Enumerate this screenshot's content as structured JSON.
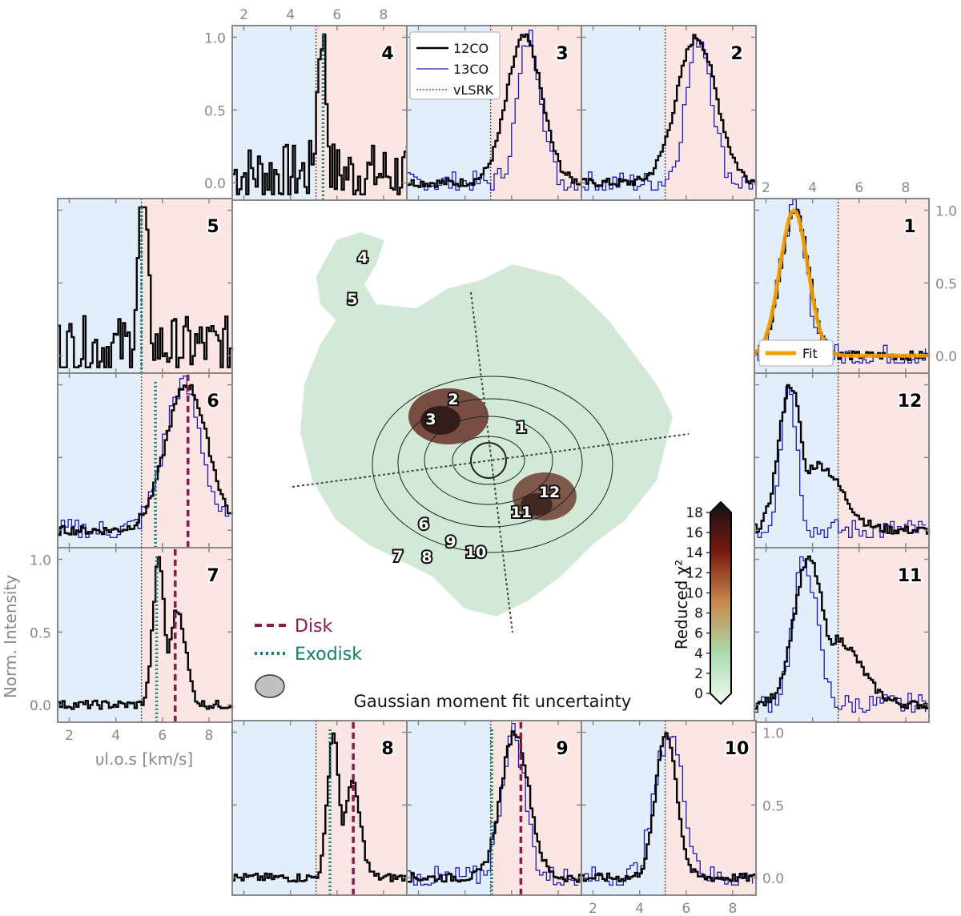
{
  "figure": {
    "colorbar_label": "Reduced χ²",
    "colorbar_ticks": [
      "0",
      "2",
      "4",
      "6",
      "8",
      "10",
      "12",
      "14",
      "16",
      "18"
    ],
    "caption": "Gaussian moment fit uncertainty",
    "ylabel": "Norm. Intensity",
    "xlabel": "υl.o.s [km/s]",
    "legend_top": [
      "12CO",
      "13CO",
      "vLSRK"
    ],
    "legend_fit": "Fit",
    "legend_disk": "Disk",
    "legend_exodisk": "Exodisk",
    "colors": {
      "co12": "#000000",
      "co13": "#1a1ab8",
      "vlsrk": "#555555",
      "disk": "#8b1a4f",
      "exodisk": "#0f7f6f",
      "fit": "#f5a000",
      "blue_side": "#e3eefb",
      "red_side": "#fce6e4",
      "frame": "#888888"
    }
  },
  "chart_data": {
    "type": "line",
    "vlsrk": 5.1,
    "x_ticks": [
      2,
      4,
      6,
      8
    ],
    "y_ticks": [
      "0.0",
      "0.5",
      "1.0"
    ],
    "xlim": [
      1.5,
      9.0
    ],
    "ylim": [
      -0.12,
      1.08
    ],
    "panels": [
      {
        "id": "4",
        "peak12": 5.3,
        "width12": 0.18,
        "noisy": true,
        "co13": false,
        "exodisk": 5.4
      },
      {
        "id": "3",
        "peak12": 6.5,
        "width12": 0.75,
        "co13": true,
        "peak13": 6.7,
        "width13": 0.5
      },
      {
        "id": "2",
        "peak12": 6.4,
        "width12": 0.85,
        "co13": true,
        "peak13": 6.5,
        "width13": 0.55
      },
      {
        "id": "1",
        "peak12": 3.2,
        "width12": 0.6,
        "co13": true,
        "peak13": 3.1,
        "width13": 0.55,
        "fit": true
      },
      {
        "id": "5",
        "peak12": 5.1,
        "width12": 0.2,
        "noisy": true,
        "co13": false,
        "exodisk": 5.1
      },
      {
        "id": "12",
        "peak12": 3.0,
        "width12": 0.5,
        "co13": true,
        "peak13": 2.9,
        "width13": 0.35,
        "tail": true
      },
      {
        "id": "6",
        "peak12": 7.0,
        "width12": 0.9,
        "co13": true,
        "peak13": 6.8,
        "width13": 0.8,
        "exodisk": 5.7,
        "disk": 7.1
      },
      {
        "id": "11",
        "peak12": 3.8,
        "width12": 0.65,
        "co13": true,
        "peak13": 3.6,
        "width13": 0.5,
        "tail": true
      },
      {
        "id": "7",
        "peak12": 5.8,
        "width12": 0.25,
        "co13": false,
        "exodisk": 5.75,
        "disk": 6.55,
        "second": 6.6
      },
      {
        "id": "8",
        "peak12": 5.8,
        "width12": 0.25,
        "co13": false,
        "exodisk": 5.7,
        "disk": 6.7,
        "second": 6.6
      },
      {
        "id": "9",
        "peak12": 6.1,
        "width12": 0.6,
        "co13": true,
        "peak13": 6.0,
        "width13": 0.5,
        "exodisk": 5.15,
        "disk": 6.4
      },
      {
        "id": "10",
        "peak12": 5.1,
        "width12": 0.45,
        "co13": true,
        "peak13": 5.2,
        "width13": 0.6
      }
    ]
  }
}
